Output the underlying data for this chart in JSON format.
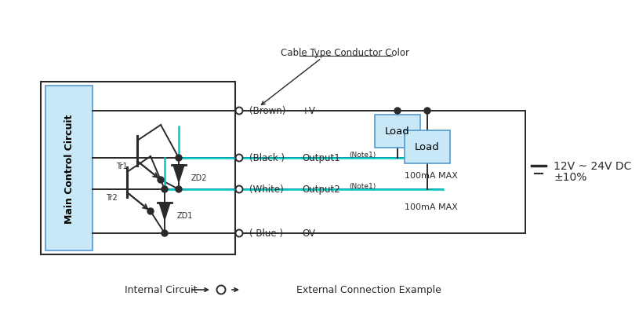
{
  "bg_color": "#ffffff",
  "line_color": "#2a2a2a",
  "cyan_color": "#00c8c8",
  "load_fill": "#c8e8f8",
  "load_edge": "#5599cc",
  "ctrl_fill": "#c8e8f8",
  "ctrl_edge": "#5599cc",
  "title": "Main Control Circuit",
  "cable_label": "Cable Type Conductor Color",
  "voltage_line1": "12V ~ 24V DC",
  "voltage_line2": "±10%",
  "internal_label": "Internal Circuit",
  "external_label": "External Connection Example",
  "load_label": "Load",
  "max_label": "100mA MAX",
  "brown_labels": [
    "(Brown)",
    "+V"
  ],
  "black_labels": [
    "(Black )",
    "Output1",
    "(Note1)"
  ],
  "white_labels": [
    "(White)",
    "Output2",
    "(Note1)"
  ],
  "blue_labels": [
    "( Blue )",
    "OV"
  ],
  "tr1_label": "Tr1",
  "tr2_label": "Tr2",
  "zd2_label": "ZD2",
  "zd1_label": "ZD1"
}
